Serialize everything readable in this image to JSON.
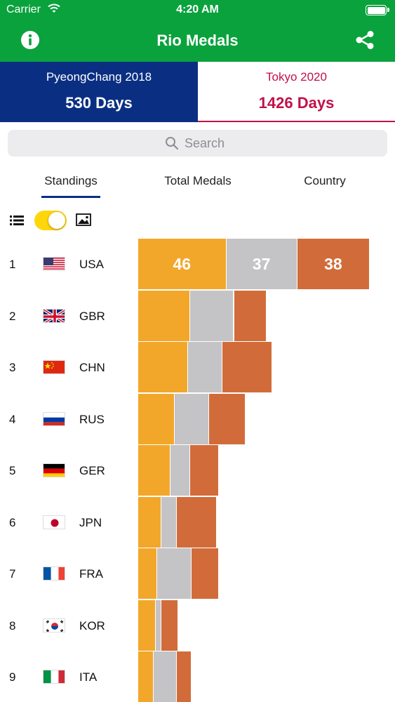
{
  "status_bar": {
    "carrier": "Carrier",
    "time": "4:20 AM"
  },
  "nav": {
    "title": "Rio Medals",
    "left_icon": "info-icon",
    "right_icon": "share-icon"
  },
  "countdowns": [
    {
      "event": "PyeongChang 2018",
      "days": "530 Days",
      "color": "#0a2f82"
    },
    {
      "event": "Tokyo 2020",
      "days": "1426 Days",
      "color": "#c1114a"
    }
  ],
  "search": {
    "placeholder": "Search",
    "value": ""
  },
  "tabs": [
    {
      "label": "Standings",
      "selected": true
    },
    {
      "label": "Total Medals",
      "selected": false
    },
    {
      "label": "Country",
      "selected": false
    }
  ],
  "view_toggle": {
    "left_icon": "list-icon",
    "right_icon": "image-icon",
    "on": true,
    "color": "#ffd60a"
  },
  "colors": {
    "brand_green": "#0aa23d",
    "gold": "#f2a72b",
    "silver": "#c4c3c6",
    "bronze": "#d16c3a"
  },
  "standings": [
    {
      "rank": "1",
      "code": "USA",
      "flag": "usa",
      "gold": 46,
      "silver": 37,
      "bronze": 38,
      "labels": [
        "46",
        "37",
        "38"
      ]
    },
    {
      "rank": "2",
      "code": "GBR",
      "flag": "gbr",
      "gold": 27,
      "silver": 23,
      "bronze": 17
    },
    {
      "rank": "3",
      "code": "CHN",
      "flag": "chn",
      "gold": 26,
      "silver": 18,
      "bronze": 26
    },
    {
      "rank": "4",
      "code": "RUS",
      "flag": "rus",
      "gold": 19,
      "silver": 18,
      "bronze": 19
    },
    {
      "rank": "5",
      "code": "GER",
      "flag": "ger",
      "gold": 17,
      "silver": 10,
      "bronze": 15
    },
    {
      "rank": "6",
      "code": "JPN",
      "flag": "jpn",
      "gold": 12,
      "silver": 8,
      "bronze": 21
    },
    {
      "rank": "7",
      "code": "FRA",
      "flag": "fra",
      "gold": 10,
      "silver": 18,
      "bronze": 14
    },
    {
      "rank": "8",
      "code": "KOR",
      "flag": "kor",
      "gold": 9,
      "silver": 3,
      "bronze": 9
    },
    {
      "rank": "9",
      "code": "ITA",
      "flag": "ita",
      "gold": 8,
      "silver": 12,
      "bronze": 8
    }
  ]
}
